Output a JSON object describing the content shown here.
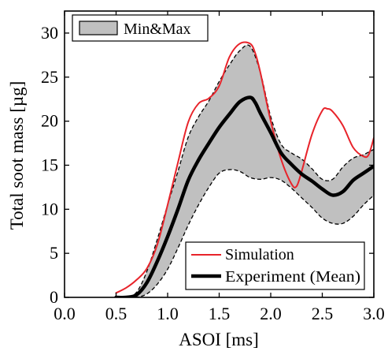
{
  "chart_data": {
    "type": "line",
    "title": "",
    "xlabel": "ASOI [ms]",
    "ylabel": "Total soot mass [µg]",
    "xlim": [
      0.0,
      3.0
    ],
    "ylim": [
      0,
      32.5
    ],
    "xticks": [
      0.0,
      0.5,
      1.0,
      1.5,
      2.0,
      2.5,
      3.0
    ],
    "xtick_labels": [
      "0.0",
      "0.5",
      "1.0",
      "1.5",
      "2.0",
      "2.5",
      "3.0"
    ],
    "yticks": [
      0,
      5,
      10,
      15,
      20,
      25,
      30
    ],
    "ytick_labels": [
      "0",
      "5",
      "10",
      "15",
      "20",
      "25",
      "30"
    ],
    "grid": false,
    "band": {
      "name": "Min&Max",
      "fill": "#c0c0c0",
      "edge": "#000000",
      "x": [
        0.5,
        0.6,
        0.7,
        0.8,
        0.9,
        1.0,
        1.1,
        1.2,
        1.3,
        1.4,
        1.5,
        1.6,
        1.7,
        1.8,
        1.9,
        2.0,
        2.1,
        2.2,
        2.3,
        2.4,
        2.5,
        2.6,
        2.7,
        2.8,
        2.9,
        3.0
      ],
      "lower": [
        0,
        0,
        0,
        0.4,
        1.5,
        3.2,
        5.6,
        8.2,
        10.5,
        12.5,
        14.1,
        14.5,
        14.3,
        13.6,
        13.4,
        13.6,
        13.3,
        12.4,
        11.3,
        10.2,
        9.0,
        8.4,
        8.4,
        9.2,
        10.5,
        11.6
      ],
      "upper": [
        0,
        0,
        0.6,
        3.0,
        6.6,
        10.5,
        14.3,
        18.2,
        20.5,
        22.3,
        24.5,
        26.4,
        28.0,
        28.5,
        25.5,
        20.5,
        17.4,
        16.4,
        15.7,
        14.6,
        13.4,
        13.4,
        14.8,
        15.8,
        16.2,
        16.8
      ]
    },
    "series": [
      {
        "name": "Simulation",
        "color": "#e8232a",
        "x": [
          0.5,
          0.6,
          0.7,
          0.8,
          0.9,
          1.0,
          1.1,
          1.2,
          1.3,
          1.4,
          1.5,
          1.6,
          1.7,
          1.8,
          1.85,
          1.9,
          2.0,
          2.1,
          2.2,
          2.25,
          2.3,
          2.4,
          2.5,
          2.55,
          2.6,
          2.7,
          2.8,
          2.9,
          2.95,
          3.0
        ],
        "y": [
          0.5,
          1.1,
          2.0,
          3.3,
          6.0,
          10.5,
          15.3,
          19.9,
          22.0,
          22.6,
          24.0,
          27.3,
          28.8,
          28.8,
          27.7,
          25.5,
          20.0,
          15.7,
          12.9,
          12.6,
          14.3,
          18.5,
          21.2,
          21.4,
          21.1,
          19.5,
          17.0,
          16.0,
          16.2,
          18.1
        ]
      },
      {
        "name": "Experiment (Mean)",
        "color": "#000000",
        "x": [
          0.5,
          0.6,
          0.7,
          0.8,
          0.9,
          1.0,
          1.1,
          1.2,
          1.3,
          1.4,
          1.5,
          1.6,
          1.7,
          1.8,
          1.85,
          1.9,
          2.0,
          2.1,
          2.2,
          2.3,
          2.4,
          2.5,
          2.6,
          2.7,
          2.8,
          2.9,
          3.0
        ],
        "y": [
          0,
          0,
          0.3,
          1.7,
          4.1,
          6.9,
          10.0,
          13.3,
          15.6,
          17.5,
          19.3,
          20.8,
          22.2,
          22.7,
          22.1,
          20.9,
          18.7,
          16.4,
          15.1,
          14.0,
          13.2,
          12.3,
          11.6,
          12.0,
          13.3,
          14.1,
          14.9
        ]
      }
    ],
    "legend": [
      {
        "position": "top-left",
        "entries": [
          "Min&Max"
        ]
      },
      {
        "position": "bottom-right",
        "entries": [
          "Simulation",
          "Experiment (Mean)"
        ]
      }
    ]
  }
}
